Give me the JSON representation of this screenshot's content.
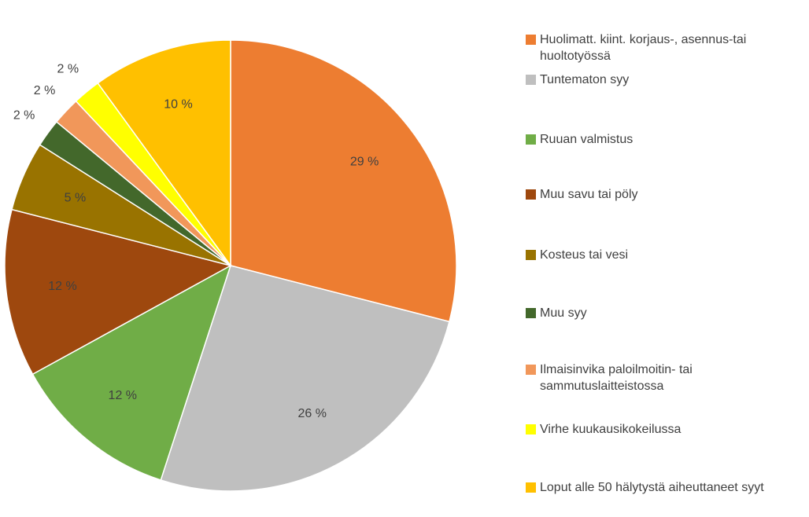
{
  "chart_data": {
    "type": "pie",
    "categories": [
      "Huolimatt. kiint. korjaus-, asennus-tai huoltotyössä",
      "Tuntematon syy",
      "Ruuan valmistus",
      "Muu savu tai pöly",
      "Kosteus tai vesi",
      "Muu syy",
      "Ilmaisinvika paloilmoitin- tai sammutuslaitteistossa",
      "Virhe kuukausikokeilussa",
      "Loput alle 50 hälytystä aiheuttaneet syyt"
    ],
    "values": [
      29,
      26,
      12,
      12,
      5,
      2,
      2,
      2,
      10
    ],
    "value_labels": [
      "29 %",
      "26 %",
      "12 %",
      "12 %",
      "5 %",
      "2 %",
      "2 %",
      "2 %",
      "10 %"
    ],
    "colors": [
      "#ED7D31",
      "#BFBFBF",
      "#70AD47",
      "#9E480E",
      "#997300",
      "#43682B",
      "#F1975A",
      "#FFFF00",
      "#FFC000"
    ],
    "legend": "right"
  }
}
